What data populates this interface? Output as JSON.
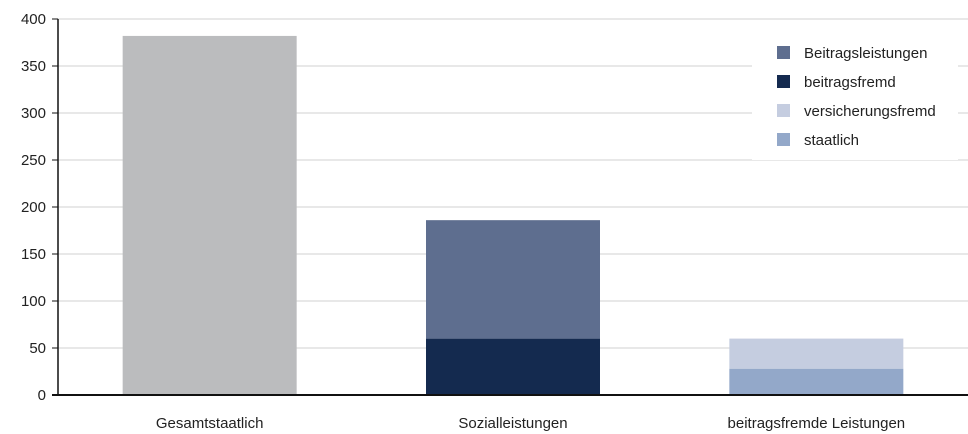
{
  "chart_data": {
    "type": "bar",
    "stacked": true,
    "categories": [
      "Gesamtstaatlich",
      "Sozialleistungen",
      "beitragsfremde Leistungen"
    ],
    "series": [
      {
        "name": "Gesamtstaatlich",
        "values": [
          382,
          0,
          0
        ],
        "color": "#bbbcbe"
      },
      {
        "name": "beitragsfremd",
        "values": [
          0,
          60,
          0
        ],
        "color": "#142a4f"
      },
      {
        "name": "Beitragsleistungen",
        "values": [
          0,
          126,
          0
        ],
        "color": "#5e6e8f"
      },
      {
        "name": "staatlich",
        "values": [
          0,
          0,
          28
        ],
        "color": "#93a8c9"
      },
      {
        "name": "versicherungsfremd",
        "values": [
          0,
          0,
          32
        ],
        "color": "#c5cde0"
      }
    ],
    "legend": {
      "position": "top-right",
      "items": [
        {
          "label": "Beitragsleistungen",
          "color": "#5e6e8f"
        },
        {
          "label": "beitragsfremd",
          "color": "#142a4f"
        },
        {
          "label": "versicherungsfremd",
          "color": "#c5cde0"
        },
        {
          "label": "staatlich",
          "color": "#93a8c9"
        }
      ]
    },
    "yticks": [
      "0",
      "50",
      "100",
      "150",
      "200",
      "250",
      "300",
      "350",
      "400"
    ],
    "ylim": [
      0,
      400
    ],
    "grid": true
  }
}
